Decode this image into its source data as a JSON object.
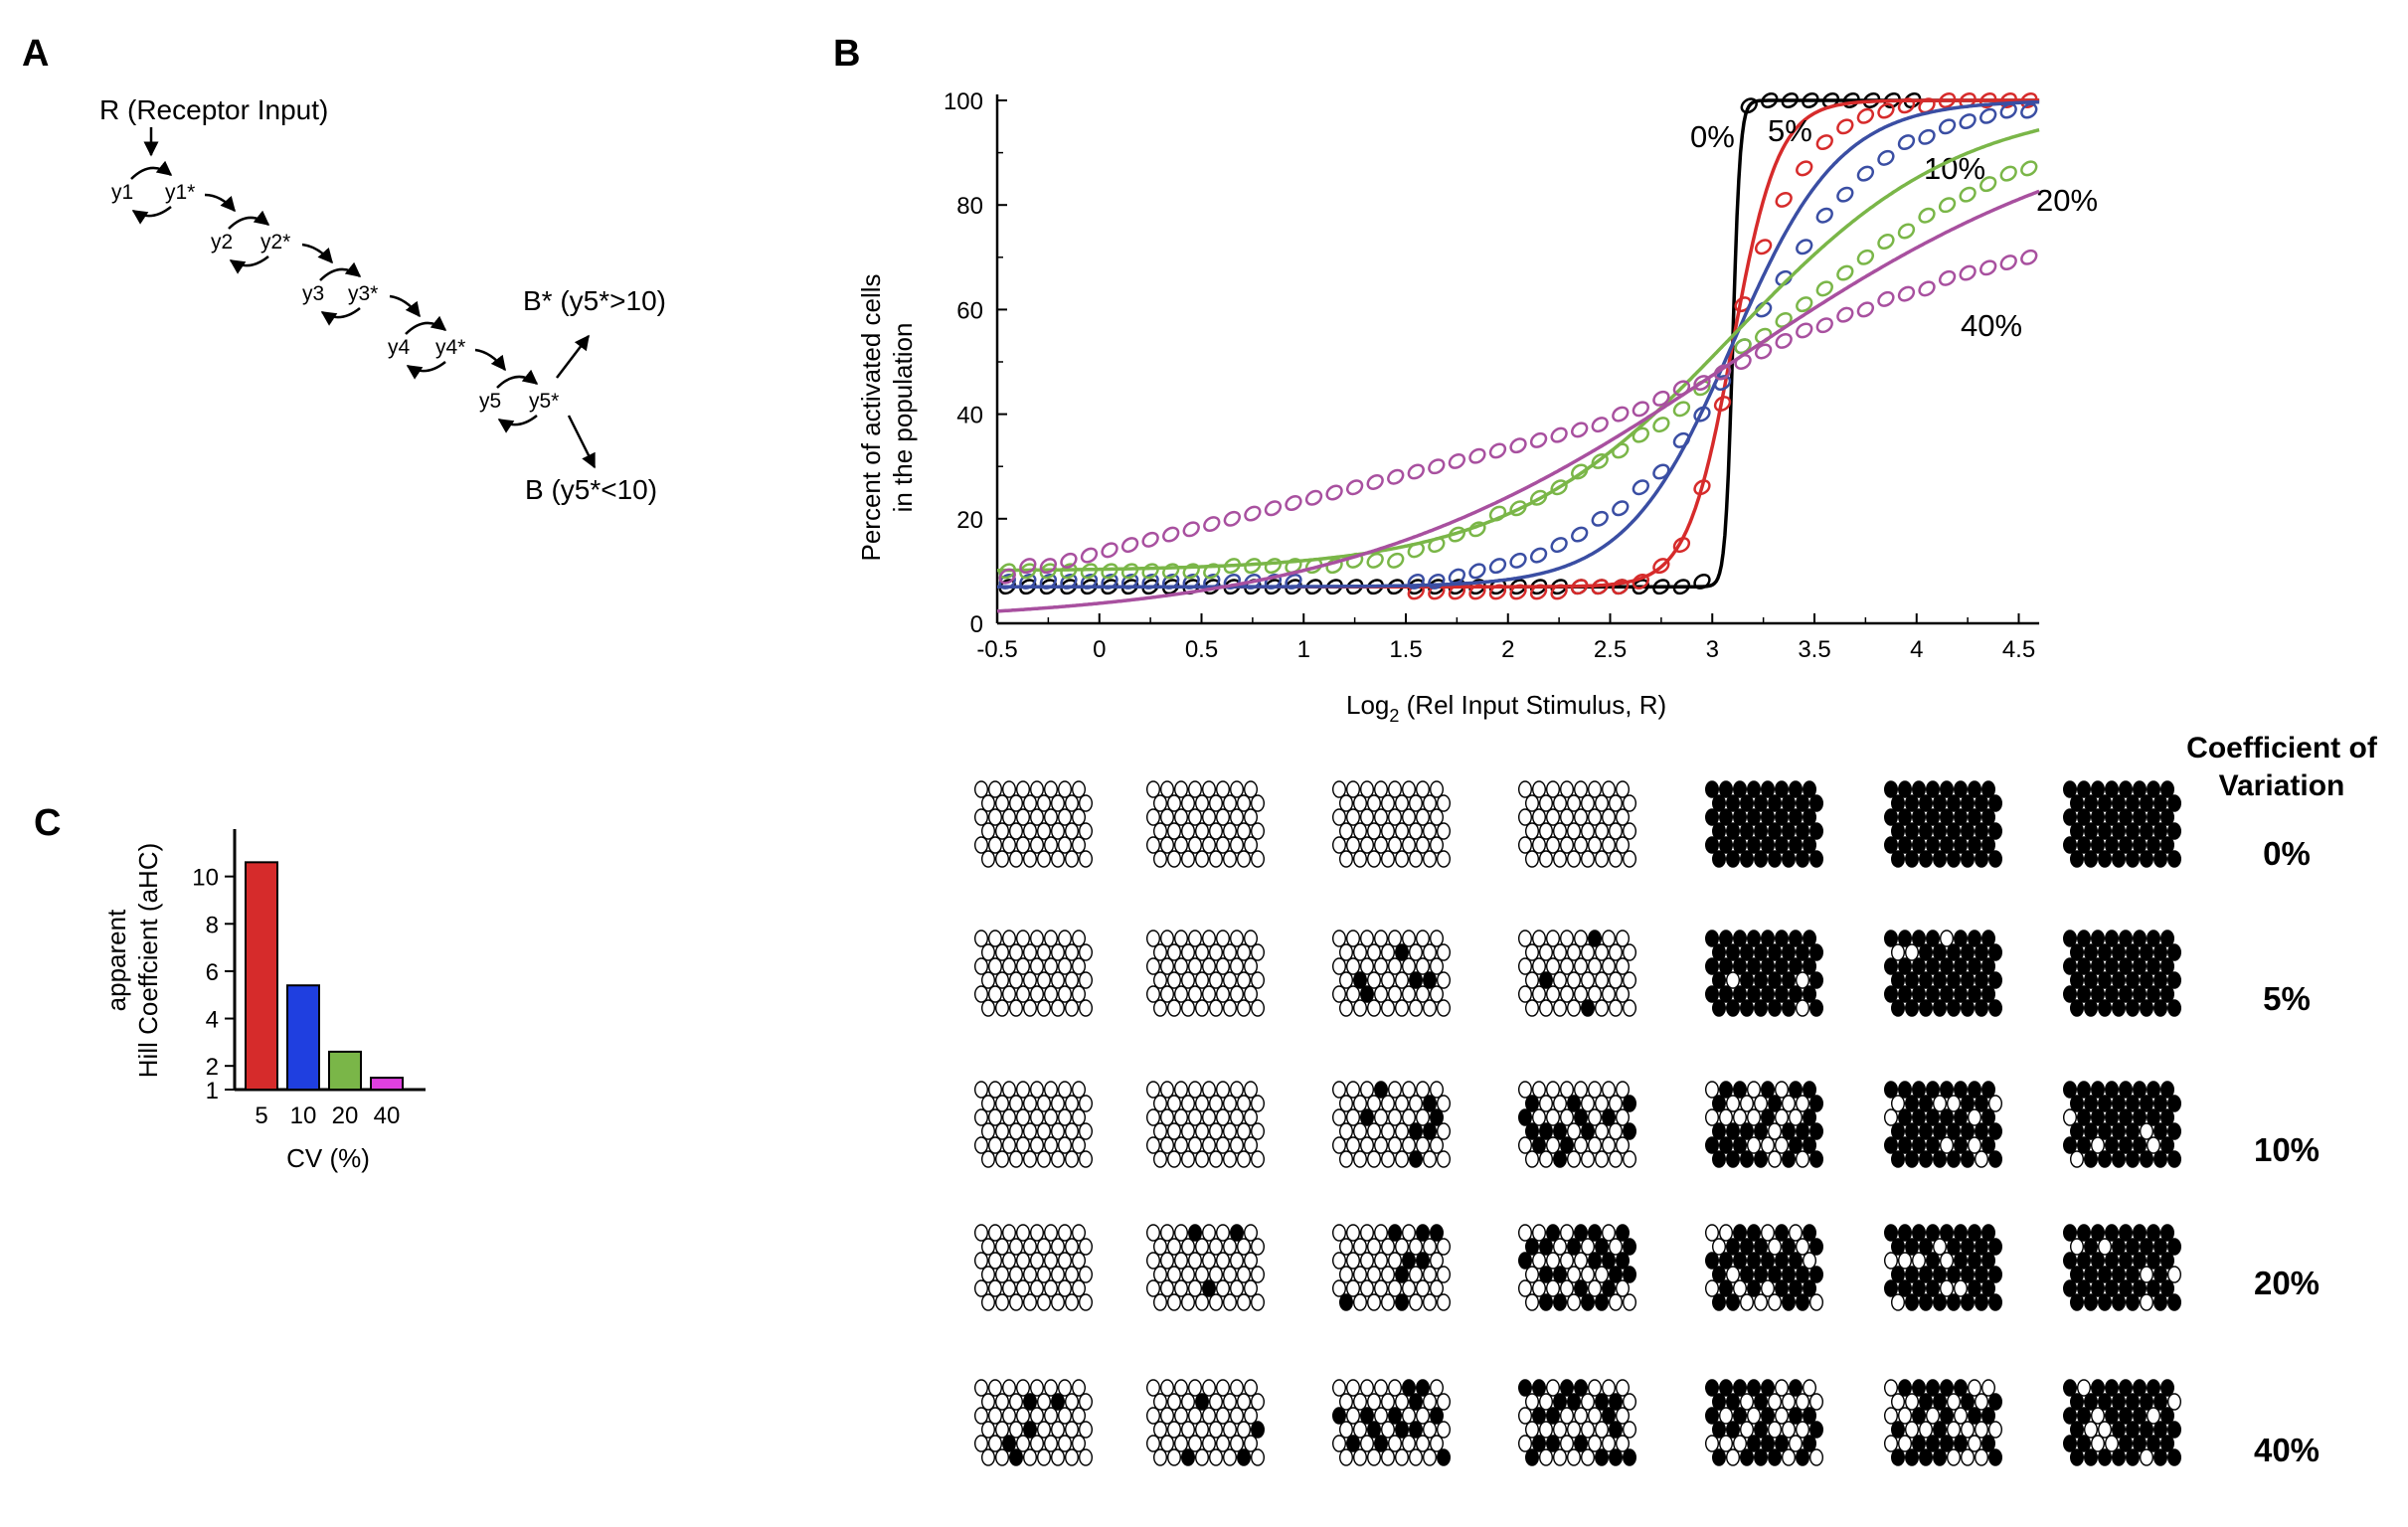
{
  "panels": {
    "a": "A",
    "b": "B",
    "c": "C"
  },
  "colors": {
    "cv0": "#000000",
    "cv5": "#d62b2b",
    "cv10": "#3a4ea3",
    "cv20": "#7ab648",
    "cv40": "#a8509f"
  },
  "scheme": {
    "receptor": "R (Receptor Input)",
    "nodes": [
      "y1",
      "y1*",
      "y2",
      "y2*",
      "y3",
      "y3*",
      "y4",
      "y4*",
      "y5",
      "y5*"
    ],
    "out_high": "B* (y5*>10)",
    "out_low": "B (y5*<10)"
  },
  "chart_data": [
    {
      "type": "line",
      "ylabel": [
        "Percent of activated cells",
        "in the population"
      ],
      "xlabel_main": "Log",
      "xlabel_sub": "2",
      "xlabel_rest": " (Rel Input Stimulus, R)",
      "xlim": [
        -0.5,
        4.6
      ],
      "ylim": [
        0,
        100
      ],
      "xticks": [
        "-0.5",
        "0",
        "0.5",
        "1",
        "1.5",
        "2",
        "2.5",
        "3",
        "3.5",
        "4",
        "4.5"
      ],
      "yticks": [
        "0",
        "20",
        "40",
        "60",
        "80",
        "100"
      ],
      "series": [
        {
          "name": "0%",
          "fit": {
            "x0": 3.1,
            "n": 80,
            "lo": 7,
            "hi": 100
          },
          "points": [
            [
              -0.45,
              7
            ],
            [
              -0.35,
              7
            ],
            [
              -0.25,
              7
            ],
            [
              -0.15,
              7
            ],
            [
              -0.05,
              7
            ],
            [
              0.05,
              7
            ],
            [
              0.15,
              7
            ],
            [
              0.25,
              7
            ],
            [
              0.35,
              7
            ],
            [
              0.45,
              7
            ],
            [
              0.55,
              7
            ],
            [
              0.65,
              7
            ],
            [
              0.75,
              7
            ],
            [
              0.85,
              7
            ],
            [
              0.95,
              7
            ],
            [
              1.05,
              7
            ],
            [
              1.15,
              7
            ],
            [
              1.25,
              7
            ],
            [
              1.35,
              7
            ],
            [
              1.45,
              7
            ],
            [
              1.55,
              7
            ],
            [
              1.65,
              7
            ],
            [
              1.75,
              7
            ],
            [
              1.85,
              7
            ],
            [
              1.95,
              7
            ],
            [
              2.05,
              7
            ],
            [
              2.15,
              7
            ],
            [
              2.25,
              7
            ],
            [
              2.35,
              7
            ],
            [
              2.45,
              7
            ],
            [
              2.55,
              7
            ],
            [
              2.65,
              7
            ],
            [
              2.75,
              7
            ],
            [
              2.85,
              7
            ],
            [
              2.95,
              8
            ],
            [
              3.18,
              99
            ],
            [
              3.28,
              100
            ],
            [
              3.38,
              100
            ],
            [
              3.48,
              100
            ],
            [
              3.58,
              100
            ],
            [
              3.68,
              100
            ],
            [
              3.78,
              100
            ],
            [
              3.88,
              100
            ],
            [
              3.98,
              100
            ]
          ]
        },
        {
          "name": "5%",
          "fit": {
            "x0": 3.1,
            "n": 13,
            "lo": 7,
            "hi": 100
          },
          "points": [
            [
              1.55,
              6
            ],
            [
              1.65,
              6
            ],
            [
              1.75,
              6
            ],
            [
              1.85,
              6
            ],
            [
              1.95,
              6
            ],
            [
              2.05,
              6
            ],
            [
              2.15,
              6
            ],
            [
              2.25,
              6
            ],
            [
              2.35,
              7
            ],
            [
              2.45,
              7
            ],
            [
              2.55,
              7
            ],
            [
              2.65,
              8
            ],
            [
              2.75,
              11
            ],
            [
              2.85,
              15
            ],
            [
              2.95,
              26
            ],
            [
              3.05,
              42
            ],
            [
              3.15,
              61
            ],
            [
              3.25,
              72
            ],
            [
              3.35,
              81
            ],
            [
              3.45,
              87
            ],
            [
              3.55,
              92
            ],
            [
              3.65,
              95
            ],
            [
              3.75,
              97
            ],
            [
              3.85,
              98
            ],
            [
              3.95,
              99
            ],
            [
              4.05,
              99
            ],
            [
              4.15,
              100
            ],
            [
              4.25,
              100
            ],
            [
              4.35,
              100
            ],
            [
              4.45,
              100
            ],
            [
              4.55,
              100
            ]
          ]
        },
        {
          "name": "10%",
          "fit": {
            "x0": 3.1,
            "n": 5.5,
            "lo": 7,
            "hi": 100
          },
          "points": [
            [
              -0.45,
              8
            ],
            [
              -0.35,
              8
            ],
            [
              -0.25,
              8
            ],
            [
              -0.15,
              8
            ],
            [
              -0.05,
              8
            ],
            [
              0.05,
              8
            ],
            [
              0.15,
              8
            ],
            [
              0.25,
              8
            ],
            [
              0.35,
              8
            ],
            [
              0.45,
              8
            ],
            [
              0.55,
              8
            ],
            [
              0.65,
              8
            ],
            [
              0.75,
              8
            ],
            [
              0.85,
              8
            ],
            [
              0.95,
              8
            ],
            [
              1.55,
              8
            ],
            [
              1.65,
              8
            ],
            [
              1.75,
              9
            ],
            [
              1.85,
              10
            ],
            [
              1.95,
              11
            ],
            [
              2.05,
              12
            ],
            [
              2.15,
              13
            ],
            [
              2.25,
              15
            ],
            [
              2.35,
              17
            ],
            [
              2.45,
              20
            ],
            [
              2.55,
              22
            ],
            [
              2.65,
              26
            ],
            [
              2.75,
              29
            ],
            [
              2.85,
              35
            ],
            [
              2.95,
              40
            ],
            [
              3.05,
              46
            ],
            [
              3.15,
              53
            ],
            [
              3.25,
              60
            ],
            [
              3.35,
              66
            ],
            [
              3.45,
              72
            ],
            [
              3.55,
              78
            ],
            [
              3.65,
              82
            ],
            [
              3.75,
              86
            ],
            [
              3.85,
              89
            ],
            [
              3.95,
              92
            ],
            [
              4.05,
              93
            ],
            [
              4.15,
              95
            ],
            [
              4.25,
              96
            ],
            [
              4.35,
              97
            ],
            [
              4.45,
              98
            ],
            [
              4.55,
              98
            ]
          ]
        },
        {
          "name": "20%",
          "fit": {
            "x0": 3.1,
            "n": 2.6,
            "lo": 10,
            "hi": 100
          },
          "points": [
            [
              -0.45,
              10
            ],
            [
              -0.35,
              10
            ],
            [
              -0.25,
              10
            ],
            [
              -0.15,
              10
            ],
            [
              -0.05,
              10
            ],
            [
              0.05,
              10
            ],
            [
              0.15,
              10
            ],
            [
              0.25,
              10
            ],
            [
              0.35,
              10
            ],
            [
              0.45,
              10
            ],
            [
              0.55,
              10
            ],
            [
              0.65,
              11
            ],
            [
              0.75,
              11
            ],
            [
              0.85,
              11
            ],
            [
              0.95,
              11
            ],
            [
              1.05,
              11
            ],
            [
              1.15,
              11
            ],
            [
              1.25,
              12
            ],
            [
              1.35,
              12
            ],
            [
              1.45,
              12
            ],
            [
              1.55,
              14
            ],
            [
              1.65,
              15
            ],
            [
              1.75,
              17
            ],
            [
              1.85,
              18
            ],
            [
              1.95,
              21
            ],
            [
              2.05,
              22
            ],
            [
              2.15,
              24
            ],
            [
              2.25,
              26
            ],
            [
              2.35,
              29
            ],
            [
              2.45,
              31
            ],
            [
              2.55,
              33
            ],
            [
              2.65,
              36
            ],
            [
              2.75,
              38
            ],
            [
              2.85,
              41
            ],
            [
              2.95,
              45
            ],
            [
              3.05,
              48
            ],
            [
              3.15,
              53
            ],
            [
              3.25,
              55
            ],
            [
              3.35,
              58
            ],
            [
              3.45,
              61
            ],
            [
              3.55,
              64
            ],
            [
              3.65,
              67
            ],
            [
              3.75,
              70
            ],
            [
              3.85,
              73
            ],
            [
              3.95,
              75
            ],
            [
              4.05,
              78
            ],
            [
              4.15,
              80
            ],
            [
              4.25,
              82
            ],
            [
              4.35,
              84
            ],
            [
              4.45,
              86
            ],
            [
              4.55,
              87
            ]
          ]
        },
        {
          "name": "40%",
          "fit": {
            "x0": 3.1,
            "n": 1.5,
            "lo": 0,
            "hi": 100
          },
          "points": [
            [
              -0.45,
              9
            ],
            [
              -0.35,
              11
            ],
            [
              -0.25,
              11
            ],
            [
              -0.15,
              12
            ],
            [
              -0.05,
              13
            ],
            [
              0.05,
              14
            ],
            [
              0.15,
              15
            ],
            [
              0.25,
              16
            ],
            [
              0.35,
              17
            ],
            [
              0.45,
              18
            ],
            [
              0.55,
              19
            ],
            [
              0.65,
              20
            ],
            [
              0.75,
              21
            ],
            [
              0.85,
              22
            ],
            [
              0.95,
              23
            ],
            [
              1.05,
              24
            ],
            [
              1.15,
              25
            ],
            [
              1.25,
              26
            ],
            [
              1.35,
              27
            ],
            [
              1.45,
              28
            ],
            [
              1.55,
              29
            ],
            [
              1.65,
              30
            ],
            [
              1.75,
              31
            ],
            [
              1.85,
              32
            ],
            [
              1.95,
              33
            ],
            [
              2.05,
              34
            ],
            [
              2.15,
              35
            ],
            [
              2.25,
              36
            ],
            [
              2.35,
              37
            ],
            [
              2.45,
              38
            ],
            [
              2.55,
              40
            ],
            [
              2.65,
              41
            ],
            [
              2.75,
              43
            ],
            [
              2.85,
              45
            ],
            [
              2.95,
              46
            ],
            [
              3.05,
              48
            ],
            [
              3.15,
              50
            ],
            [
              3.25,
              52
            ],
            [
              3.35,
              54
            ],
            [
              3.45,
              56
            ],
            [
              3.55,
              57
            ],
            [
              3.65,
              59
            ],
            [
              3.75,
              60
            ],
            [
              3.85,
              62
            ],
            [
              3.95,
              63
            ],
            [
              4.05,
              64
            ],
            [
              4.15,
              66
            ],
            [
              4.25,
              67
            ],
            [
              4.35,
              68
            ],
            [
              4.45,
              69
            ],
            [
              4.55,
              70
            ]
          ]
        }
      ]
    },
    {
      "type": "bar",
      "ylabel": [
        "apparent",
        "Hill Coeffcient (aHC)"
      ],
      "xlabel": "CV (%)",
      "categories": [
        "5",
        "10",
        "20",
        "40"
      ],
      "values": [
        10.6,
        5.4,
        2.6,
        1.5
      ],
      "ylim": [
        1,
        12
      ],
      "yticks": [
        "1",
        "2",
        "4",
        "6",
        "8",
        "10"
      ]
    }
  ],
  "grid": {
    "header": [
      "Coefficient of",
      "Variation"
    ],
    "rows": [
      {
        "label": "0%",
        "active": [
          0,
          0,
          0,
          0,
          1.0,
          1.0,
          1.0
        ]
      },
      {
        "label": "5%",
        "active": [
          0,
          0,
          0.02,
          0.08,
          0.88,
          0.95,
          1.0
        ]
      },
      {
        "label": "10%",
        "active": [
          0,
          0.02,
          0.12,
          0.28,
          0.6,
          0.85,
          0.93
        ]
      },
      {
        "label": "20%",
        "active": [
          0,
          0.04,
          0.1,
          0.4,
          0.58,
          0.7,
          0.88
        ]
      },
      {
        "label": "40%",
        "active": [
          0.05,
          0.12,
          0.3,
          0.42,
          0.55,
          0.6,
          0.7
        ]
      }
    ]
  }
}
